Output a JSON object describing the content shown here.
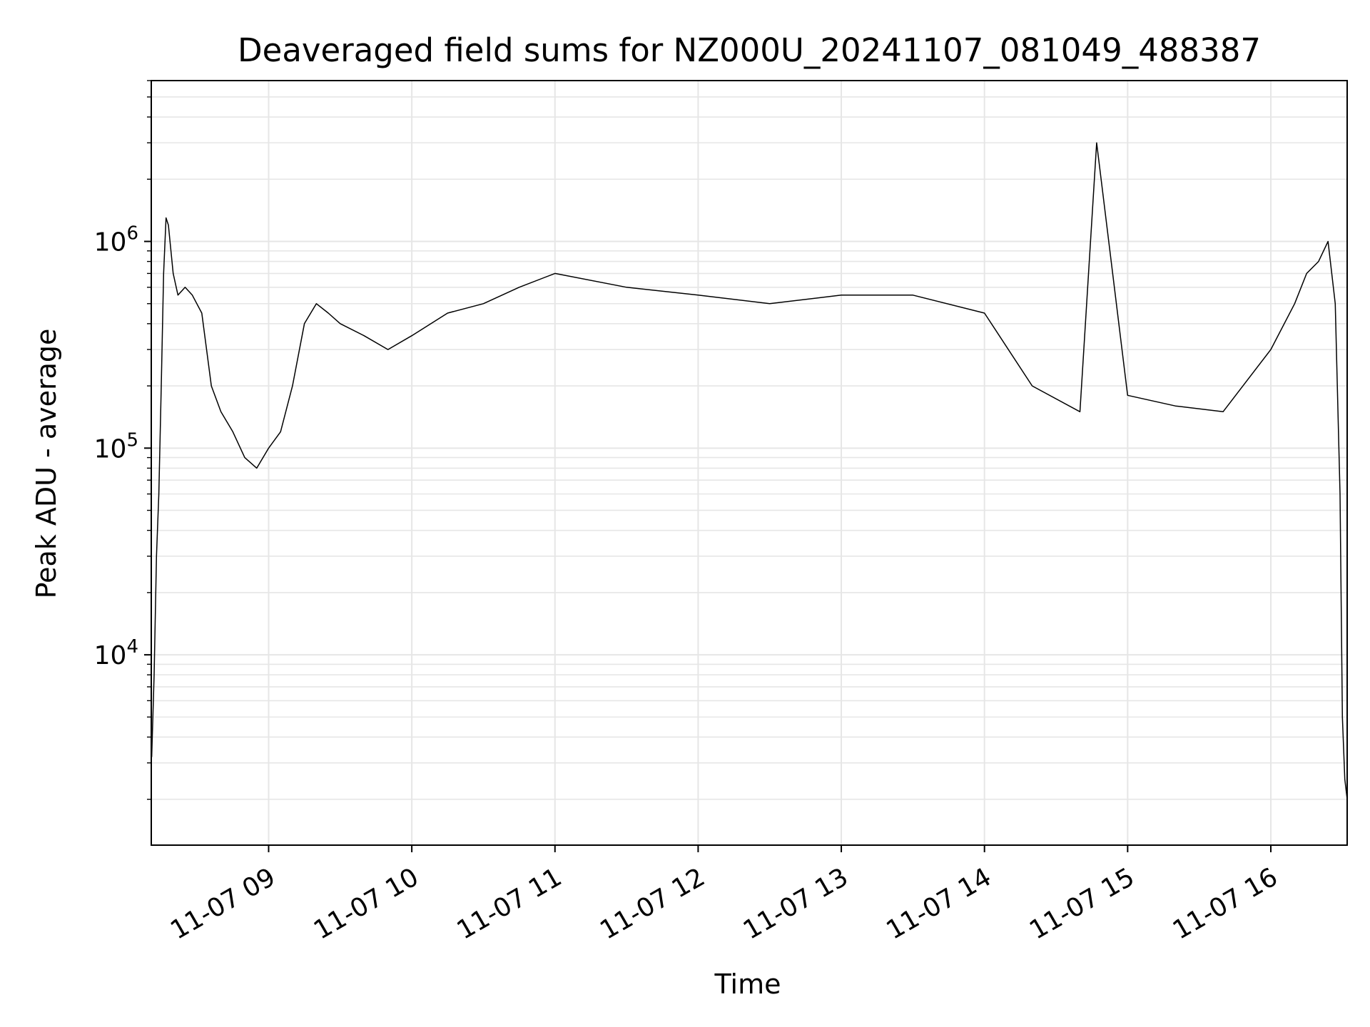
{
  "chart_data": {
    "type": "line",
    "title": "Deaveraged field sums for NZ000U_20241107_081049_488387",
    "xlabel": "Time",
    "ylabel": "Peak ADU - average",
    "yscale": "log",
    "ylim": [
      1200,
      6000000
    ],
    "xlim": [
      "2024-11-07T08:10:49",
      "2024-11-07T16:32:00"
    ],
    "grid": true,
    "line_color": "#000000",
    "x_ticks": [
      {
        "t": "2024-11-07T09:00",
        "label": "11-07 09"
      },
      {
        "t": "2024-11-07T10:00",
        "label": "11-07 10"
      },
      {
        "t": "2024-11-07T11:00",
        "label": "11-07 11"
      },
      {
        "t": "2024-11-07T12:00",
        "label": "11-07 12"
      },
      {
        "t": "2024-11-07T13:00",
        "label": "11-07 13"
      },
      {
        "t": "2024-11-07T14:00",
        "label": "11-07 14"
      },
      {
        "t": "2024-11-07T15:00",
        "label": "11-07 15"
      },
      {
        "t": "2024-11-07T16:00",
        "label": "11-07 16"
      }
    ],
    "y_ticks": [
      {
        "value": 10000,
        "base": "10",
        "exp": "4"
      },
      {
        "value": 100000,
        "base": "10",
        "exp": "5"
      },
      {
        "value": 1000000,
        "base": "10",
        "exp": "6"
      }
    ],
    "series": [
      {
        "x": [
          "2024-11-07T08:11",
          "2024-11-07T08:12",
          "2024-11-07T08:13",
          "2024-11-07T08:14",
          "2024-11-07T08:15",
          "2024-11-07T08:16",
          "2024-11-07T08:17",
          "2024-11-07T08:18",
          "2024-11-07T08:20",
          "2024-11-07T08:22",
          "2024-11-07T08:25",
          "2024-11-07T08:28",
          "2024-11-07T08:32",
          "2024-11-07T08:36",
          "2024-11-07T08:40",
          "2024-11-07T08:45",
          "2024-11-07T08:50",
          "2024-11-07T08:55",
          "2024-11-07T09:00",
          "2024-11-07T09:05",
          "2024-11-07T09:10",
          "2024-11-07T09:15",
          "2024-11-07T09:20",
          "2024-11-07T09:25",
          "2024-11-07T09:30",
          "2024-11-07T09:40",
          "2024-11-07T09:50",
          "2024-11-07T10:00",
          "2024-11-07T10:15",
          "2024-11-07T10:30",
          "2024-11-07T10:45",
          "2024-11-07T11:00",
          "2024-11-07T11:30",
          "2024-11-07T12:00",
          "2024-11-07T12:30",
          "2024-11-07T13:00",
          "2024-11-07T13:30",
          "2024-11-07T14:00",
          "2024-11-07T14:20",
          "2024-11-07T14:40",
          "2024-11-07T14:47",
          "2024-11-07T15:00",
          "2024-11-07T15:20",
          "2024-11-07T15:40",
          "2024-11-07T16:00",
          "2024-11-07T16:10",
          "2024-11-07T16:15",
          "2024-11-07T16:20",
          "2024-11-07T16:24",
          "2024-11-07T16:27",
          "2024-11-07T16:29",
          "2024-11-07T16:30",
          "2024-11-07T16:31",
          "2024-11-07T16:32"
        ],
        "y": [
          3200,
          8000,
          30000,
          60000,
          200000,
          700000,
          1300000,
          1200000,
          700000,
          550000,
          600000,
          550000,
          450000,
          200000,
          150000,
          120000,
          90000,
          80000,
          100000,
          120000,
          200000,
          400000,
          500000,
          450000,
          400000,
          350000,
          300000,
          350000,
          450000,
          500000,
          600000,
          700000,
          600000,
          550000,
          500000,
          550000,
          550000,
          450000,
          200000,
          150000,
          3000000,
          180000,
          160000,
          150000,
          300000,
          500000,
          700000,
          800000,
          1000000,
          500000,
          60000,
          5000,
          2500,
          2000
        ]
      }
    ]
  }
}
